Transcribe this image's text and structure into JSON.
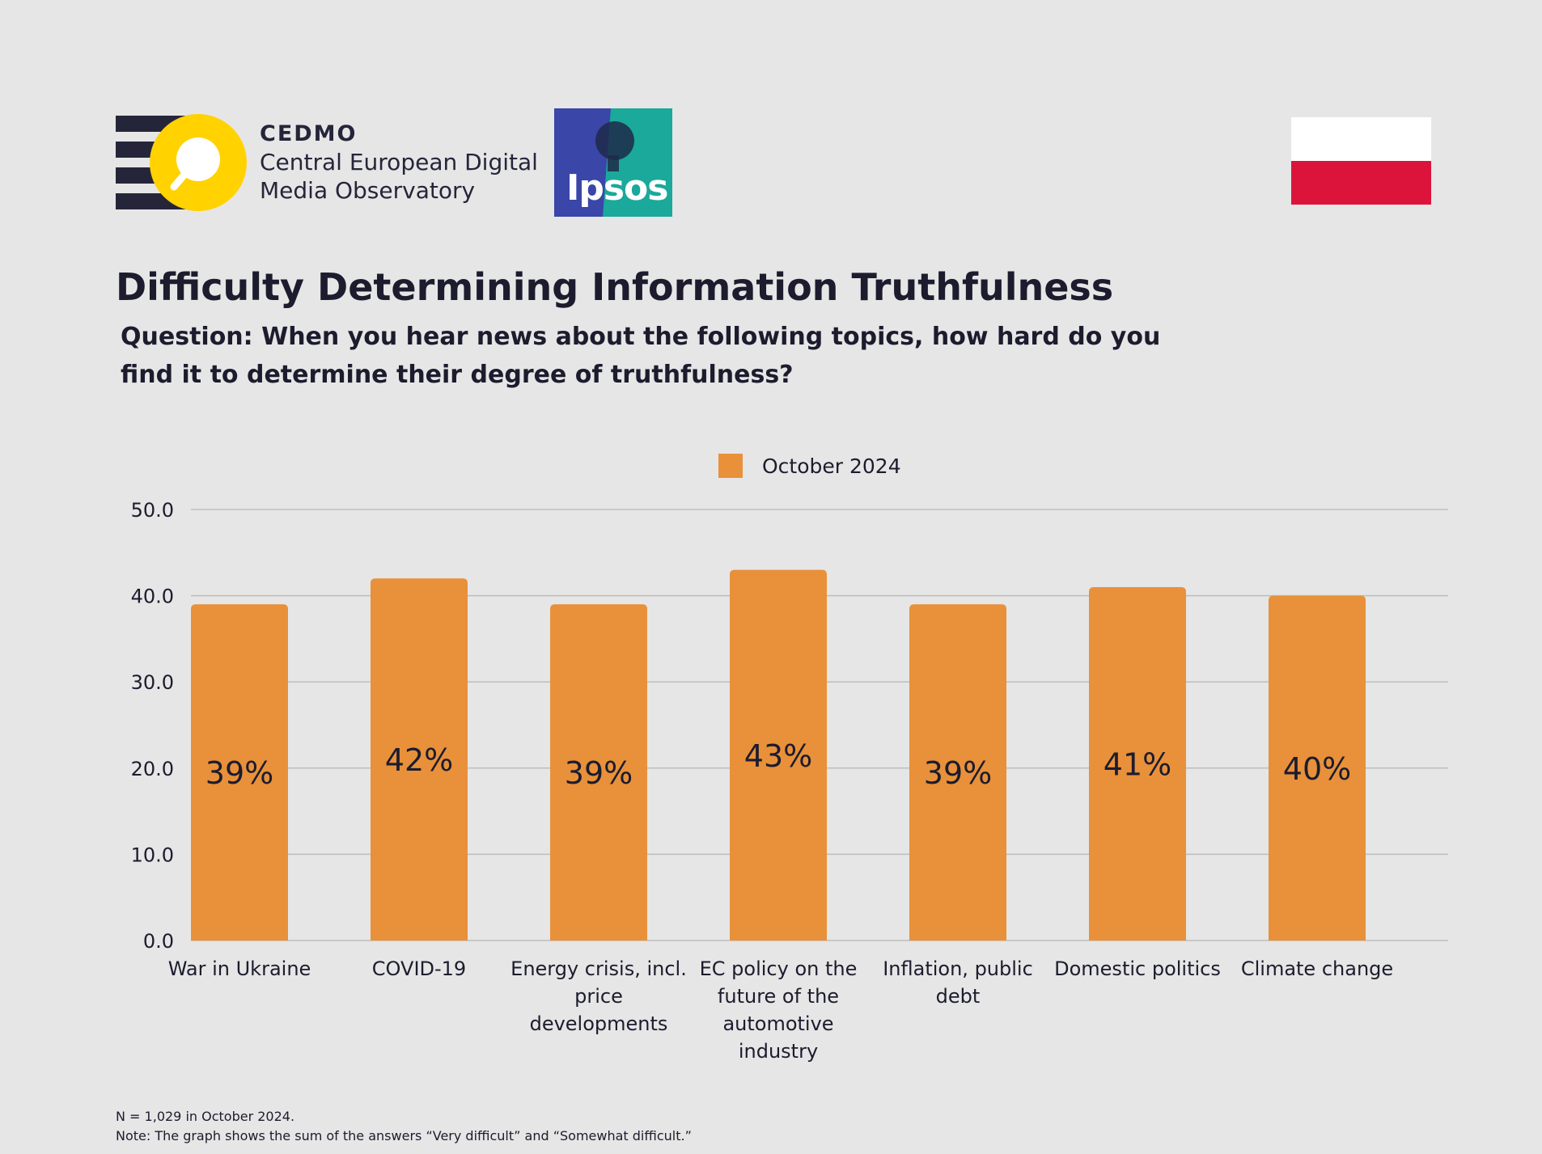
{
  "header": {
    "cedmo_name": "CEDMO",
    "cedmo_line1": "Central European Digital",
    "cedmo_line2": "Media Observatory",
    "ipsos_text": "Ipsos"
  },
  "flag": {
    "top_color": "#ffffff",
    "bottom_color": "#dc143c"
  },
  "title": "Difficulty Determining Information Truthfulness",
  "subtitle": "Question: When you hear news about the following topics, how hard do you find it to determine their degree of truthfulness?",
  "footnotes": {
    "n": "N = 1,029 in October 2024.",
    "note": "Note: The graph shows the sum of the answers “Very difficult” and “Somewhat difficult.”"
  },
  "colors": {
    "bar": "#e8913a",
    "grid": "#bdbdbd",
    "text": "#1c1c2e"
  },
  "chart_data": {
    "type": "bar",
    "categories": [
      "War in Ukraine",
      "COVID-19",
      "Energy crisis, incl. price developments",
      "EC policy on the future of the automotive industry",
      "Inflation, public debt",
      "Domestic politics",
      "Climate change"
    ],
    "category_lines": [
      [
        "War in Ukraine"
      ],
      [
        "COVID-19"
      ],
      [
        "Energy crisis, incl.",
        "price",
        "developments"
      ],
      [
        "EC policy on the",
        "future of the",
        "automotive",
        "industry"
      ],
      [
        "Inflation, public",
        "debt"
      ],
      [
        "Domestic politics"
      ],
      [
        "Climate change"
      ]
    ],
    "series": [
      {
        "name": "October 2024",
        "values": [
          39,
          42,
          39,
          43,
          39,
          41,
          40
        ]
      }
    ],
    "data_labels": [
      "39%",
      "42%",
      "39%",
      "43%",
      "39%",
      "41%",
      "40%"
    ],
    "y_ticks": [
      "0.0",
      "10.0",
      "20.0",
      "30.0",
      "40.0",
      "50.0"
    ],
    "ylim": [
      0,
      50
    ],
    "grid": true,
    "legend": "top-center"
  }
}
